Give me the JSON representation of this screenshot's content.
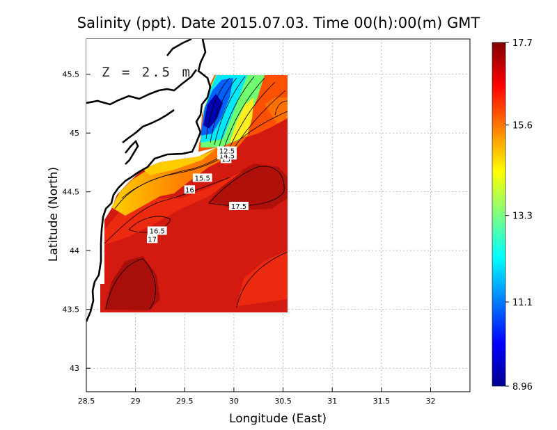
{
  "chart_data": {
    "type": "heatmap",
    "title": "Salinity (ppt). Date 2015.07.03. Time 00(h):00(m) GMT",
    "xlabel": "Longitude (East)",
    "ylabel": "Latitude (North)",
    "annotation": "Z = 2.5 m",
    "xlim": [
      28.5,
      32.4
    ],
    "ylim": [
      42.8,
      45.8
    ],
    "x_ticks": [
      "28.5",
      "29",
      "29.5",
      "30",
      "30.5",
      "31",
      "31.5",
      "32"
    ],
    "y_ticks": [
      "43",
      "43.5",
      "44",
      "44.5",
      "45",
      "45.5"
    ],
    "grid": true,
    "colorbar": {
      "min": 8.96,
      "max": 17.7,
      "tick_labels": [
        "17.7",
        "15.6",
        "13.3",
        "11.1",
        "8.96"
      ],
      "colors": [
        "#00008f",
        "#0000ff",
        "#0080ff",
        "#00ffff",
        "#80ff80",
        "#ffff00",
        "#ff8000",
        "#ff0000",
        "#800000"
      ]
    },
    "field_extent": {
      "lon": [
        28.62,
        30.52
      ],
      "lat": [
        43.48,
        45.5
      ]
    },
    "contour_labels": [
      {
        "text": "17.5",
        "lon": 30.05,
        "lat": 44.38
      },
      {
        "text": "16",
        "lon": 29.55,
        "lat": 44.52
      },
      {
        "text": "15.5",
        "lon": 29.68,
        "lat": 44.62
      },
      {
        "text": "16.5",
        "lon": 29.22,
        "lat": 44.17
      },
      {
        "text": "17",
        "lon": 29.17,
        "lat": 44.1
      },
      {
        "text": "15",
        "lon": 29.92,
        "lat": 44.78
      },
      {
        "text": "14.5",
        "lon": 29.93,
        "lat": 44.81
      },
      {
        "text": "12.5",
        "lon": 29.93,
        "lat": 44.85
      }
    ]
  }
}
